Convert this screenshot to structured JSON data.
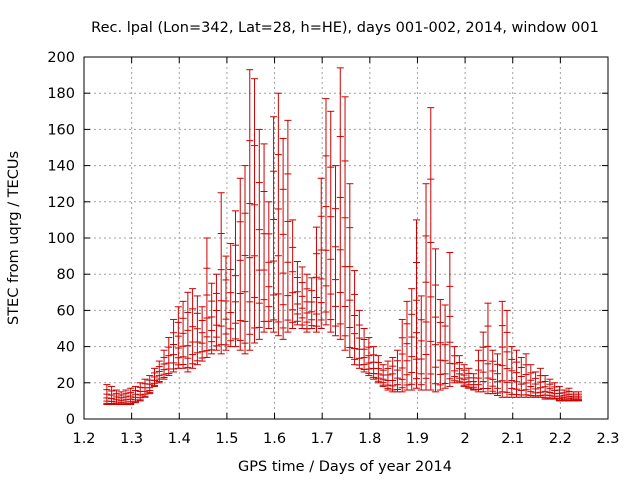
{
  "chart_data": {
    "type": "scatter",
    "title": "Rec. lpal (Lon=342, Lat=28, h=HE), days 001-002, 2014, window 001",
    "xlabel": "GPS time / Days of year 2014",
    "ylabel": "STEC from uqrg / TECUs",
    "xlim": [
      1.2,
      2.3
    ],
    "ylim": [
      0,
      200
    ],
    "xticks": [
      "1.2",
      "1.3",
      "1.4",
      "1.5",
      "1.6",
      "1.7",
      "1.8",
      "1.9",
      "2",
      "2.1",
      "2.2",
      "2.3"
    ],
    "yticks": [
      "0",
      "20",
      "40",
      "60",
      "80",
      "100",
      "120",
      "140",
      "160",
      "180",
      "200"
    ],
    "grid": true,
    "legend": "none",
    "color": "#cc0000",
    "x": [
      1.248,
      1.258,
      1.268,
      1.278,
      1.288,
      1.298,
      1.308,
      1.318,
      1.328,
      1.338,
      1.348,
      1.358,
      1.368,
      1.378,
      1.388,
      1.398,
      1.408,
      1.418,
      1.428,
      1.438,
      1.448,
      1.458,
      1.468,
      1.478,
      1.488,
      1.498,
      1.508,
      1.518,
      1.528,
      1.538,
      1.548,
      1.558,
      1.568,
      1.578,
      1.588,
      1.598,
      1.608,
      1.618,
      1.628,
      1.638,
      1.648,
      1.658,
      1.668,
      1.678,
      1.688,
      1.698,
      1.708,
      1.718,
      1.728,
      1.738,
      1.748,
      1.758,
      1.768,
      1.778,
      1.788,
      1.798,
      1.808,
      1.818,
      1.828,
      1.838,
      1.848,
      1.858,
      1.868,
      1.878,
      1.888,
      1.898,
      1.908,
      1.918,
      1.928,
      1.938,
      1.948,
      1.958,
      1.968,
      1.978,
      1.988,
      1.998,
      2.008,
      2.018,
      2.028,
      2.038,
      2.048,
      2.058,
      2.068,
      2.078,
      2.088,
      2.098,
      2.108,
      2.118,
      2.128,
      2.138,
      2.148,
      2.158,
      2.168,
      2.178,
      2.188,
      2.198,
      2.208,
      2.218,
      2.228,
      2.238
    ],
    "y_top": [
      19,
      18,
      16,
      15,
      16,
      17,
      18,
      20,
      22,
      24,
      28,
      32,
      38,
      45,
      55,
      62,
      65,
      70,
      72,
      68,
      62,
      100,
      75,
      80,
      125,
      90,
      97,
      115,
      133,
      140,
      193,
      188,
      160,
      152,
      120,
      167,
      180,
      155,
      165,
      110,
      87,
      84,
      80,
      78,
      106,
      133,
      177,
      170,
      140,
      194,
      178,
      130,
      82,
      60,
      50,
      45,
      40,
      35,
      30,
      32,
      34,
      38,
      55,
      65,
      72,
      110,
      68,
      130,
      172,
      94,
      66,
      63,
      92,
      40,
      35,
      30,
      28,
      25,
      38,
      48,
      64,
      38,
      36,
      65,
      60,
      40,
      38,
      34,
      36,
      30,
      26,
      28,
      24,
      22,
      20,
      18,
      16,
      17,
      15,
      15
    ],
    "y_bottom": [
      8,
      8,
      8,
      8,
      8,
      8,
      9,
      10,
      12,
      14,
      18,
      20,
      22,
      24,
      26,
      28,
      28,
      26,
      28,
      30,
      32,
      34,
      36,
      38,
      36,
      38,
      40,
      40,
      38,
      36,
      38,
      42,
      44,
      48,
      50,
      48,
      46,
      44,
      48,
      50,
      52,
      50,
      48,
      50,
      48,
      50,
      52,
      48,
      46,
      44,
      38,
      34,
      30,
      28,
      26,
      24,
      22,
      20,
      18,
      16,
      15,
      15,
      15,
      16,
      16,
      17,
      16,
      16,
      16,
      15,
      16,
      17,
      18,
      20,
      20,
      18,
      17,
      16,
      15,
      15,
      14,
      14,
      13,
      12,
      12,
      12,
      12,
      12,
      12,
      12,
      12,
      12,
      11,
      11,
      11,
      10,
      10,
      10,
      10,
      10
    ]
  }
}
